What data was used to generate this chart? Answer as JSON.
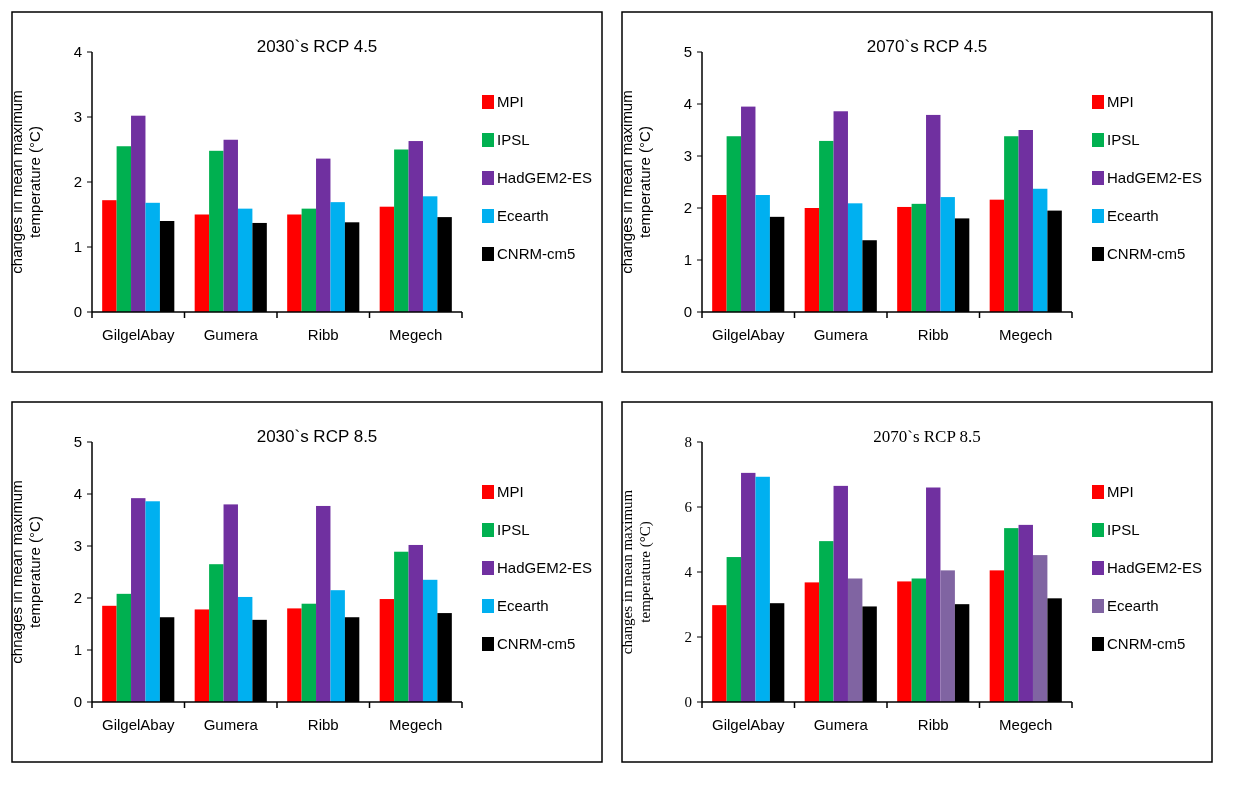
{
  "chart_data": [
    {
      "type": "bar",
      "title": "2030`s RCP 4.5",
      "ylabel": "changes in mean maximum temperature (°C)",
      "categories": [
        "GilgelAbay",
        "Gumera",
        "Ribb",
        "Megech"
      ],
      "ylim": [
        0,
        4
      ],
      "yticks": [
        0,
        1,
        2,
        3,
        4
      ],
      "legend": "right",
      "series": [
        {
          "name": "MPI",
          "color": "#ff0000",
          "values": [
            1.72,
            1.5,
            1.5,
            1.62
          ]
        },
        {
          "name": "IPSL",
          "color": "#00b050",
          "values": [
            2.55,
            2.48,
            1.59,
            2.5
          ]
        },
        {
          "name": "HadGEM2-ES",
          "color": "#7030a0",
          "values": [
            3.02,
            2.65,
            2.36,
            2.63
          ]
        },
        {
          "name": "Ecearth",
          "color": "#00b0f0",
          "values": [
            1.68,
            1.59,
            1.69,
            1.78
          ]
        },
        {
          "name": "CNRM-cm5",
          "color": "#000000",
          "values": [
            1.4,
            1.37,
            1.38,
            1.46
          ]
        }
      ]
    },
    {
      "type": "bar",
      "title": "2070`s RCP 4.5",
      "ylabel": "changes in mean maximum temperature (°C)",
      "categories": [
        "GilgelAbay",
        "Gumera",
        "Ribb",
        "Megech"
      ],
      "ylim": [
        0,
        5
      ],
      "yticks": [
        0,
        1,
        2,
        3,
        4,
        5
      ],
      "legend": "right",
      "series": [
        {
          "name": "MPI",
          "color": "#ff0000",
          "values": [
            2.25,
            2.0,
            2.02,
            2.16
          ]
        },
        {
          "name": "IPSL",
          "color": "#00b050",
          "values": [
            3.38,
            3.29,
            2.08,
            3.38
          ]
        },
        {
          "name": "HadGEM2-ES",
          "color": "#7030a0",
          "values": [
            3.95,
            3.86,
            3.79,
            3.5
          ]
        },
        {
          "name": "Ecearth",
          "color": "#00b0f0",
          "values": [
            2.25,
            2.09,
            2.21,
            2.37
          ]
        },
        {
          "name": "CNRM-cm5",
          "color": "#000000",
          "values": [
            1.83,
            1.38,
            1.8,
            1.95
          ]
        }
      ]
    },
    {
      "type": "bar",
      "title": "2030`s RCP 8.5",
      "ylabel": "chnages in mean maximum temperature (°C)",
      "categories": [
        "GilgelAbay",
        "Gumera",
        "Ribb",
        "Megech"
      ],
      "ylim": [
        0,
        5
      ],
      "yticks": [
        0,
        1,
        2,
        3,
        4,
        5
      ],
      "legend": "right",
      "series": [
        {
          "name": "MPI",
          "color": "#ff0000",
          "values": [
            1.85,
            1.78,
            1.8,
            1.98
          ]
        },
        {
          "name": "IPSL",
          "color": "#00b050",
          "values": [
            2.08,
            2.65,
            1.89,
            2.89
          ]
        },
        {
          "name": "HadGEM2-ES",
          "color": "#7030a0",
          "values": [
            3.92,
            3.8,
            3.77,
            3.02
          ]
        },
        {
          "name": "Ecearth",
          "color": "#00b0f0",
          "values": [
            3.86,
            2.02,
            2.15,
            2.35
          ]
        },
        {
          "name": "CNRM-cm5",
          "color": "#000000",
          "values": [
            1.63,
            1.58,
            1.63,
            1.71
          ]
        }
      ]
    },
    {
      "type": "bar",
      "title": "2070`s RCP 8.5",
      "ylabel": "changes in mean maximum temperature (°C)",
      "categories": [
        "GilgelAbay",
        "Gumera",
        "Ribb",
        "Megech"
      ],
      "ylim": [
        0,
        8
      ],
      "yticks": [
        0,
        2,
        4,
        6,
        8
      ],
      "legend": "right",
      "series": [
        {
          "name": "MPI",
          "color": "#ff0000",
          "values": [
            2.98,
            3.68,
            3.71,
            4.05
          ]
        },
        {
          "name": "IPSL",
          "color": "#00b050",
          "values": [
            4.46,
            4.95,
            3.8,
            5.35
          ]
        },
        {
          "name": "HadGEM2-ES",
          "color": "#7030a0",
          "values": [
            7.05,
            6.65,
            6.6,
            5.45
          ]
        },
        {
          "name": "Ecearth",
          "color": "#8064a2",
          "colors": [
            "#00b0f0",
            "#8064a2",
            "#8064a2",
            "#8064a2"
          ],
          "values": [
            6.93,
            3.8,
            4.05,
            4.52
          ]
        },
        {
          "name": "CNRM-cm5",
          "color": "#000000",
          "values": [
            3.04,
            2.94,
            3.01,
            3.19
          ]
        }
      ]
    }
  ]
}
